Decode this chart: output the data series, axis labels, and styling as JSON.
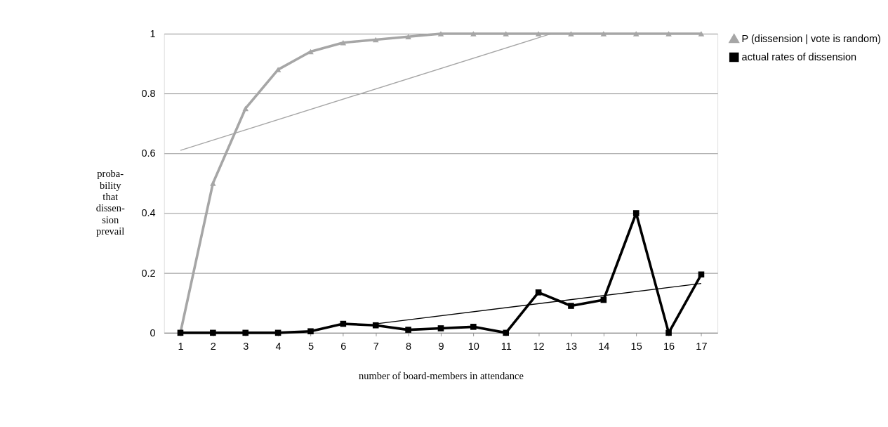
{
  "chart_data": {
    "type": "line",
    "xlabel": "number of board-members in attendance",
    "ylabel": "proba-\nbility\nthat\ndissen-\nsion\nprevail",
    "x": [
      1,
      2,
      3,
      4,
      5,
      6,
      7,
      8,
      9,
      10,
      11,
      12,
      13,
      14,
      15,
      16,
      17
    ],
    "xlim": [
      0.5,
      17.5
    ],
    "xticks": [
      1,
      2,
      3,
      4,
      5,
      6,
      7,
      8,
      9,
      10,
      11,
      12,
      13,
      14,
      15,
      16,
      17
    ],
    "ylim": [
      0,
      1
    ],
    "yticks": [
      0,
      0.2,
      0.4,
      0.6,
      0.8,
      1
    ],
    "grid": "y",
    "legend": "right",
    "line_style": "solid",
    "series": [
      {
        "name": "P (dissension | vote is random)",
        "color": "#a6a6a6",
        "marker": "triangle",
        "values": [
          0,
          0.5,
          0.75,
          0.88,
          0.94,
          0.97,
          0.98,
          0.99,
          1.0,
          1.0,
          1.0,
          1.0,
          1.0,
          1.0,
          1.0,
          1.0,
          1.0
        ]
      },
      {
        "name": "actual rates of dissension",
        "color": "#000000",
        "marker": "square",
        "values": [
          0,
          0,
          0,
          0,
          0.005,
          0.03,
          0.025,
          0.01,
          0.015,
          0.02,
          0,
          0.135,
          0.09,
          0.11,
          0.4,
          0,
          0.195
        ]
      },
      {
        "type": "line",
        "color": "#a6a6a6",
        "marker": "none",
        "x": [
          1,
          12.4
        ],
        "values": [
          0.61,
          1.0
        ]
      },
      {
        "type": "line",
        "color": "#000000",
        "marker": "none",
        "x": [
          7,
          17
        ],
        "values": [
          0.03,
          0.165
        ]
      }
    ]
  }
}
